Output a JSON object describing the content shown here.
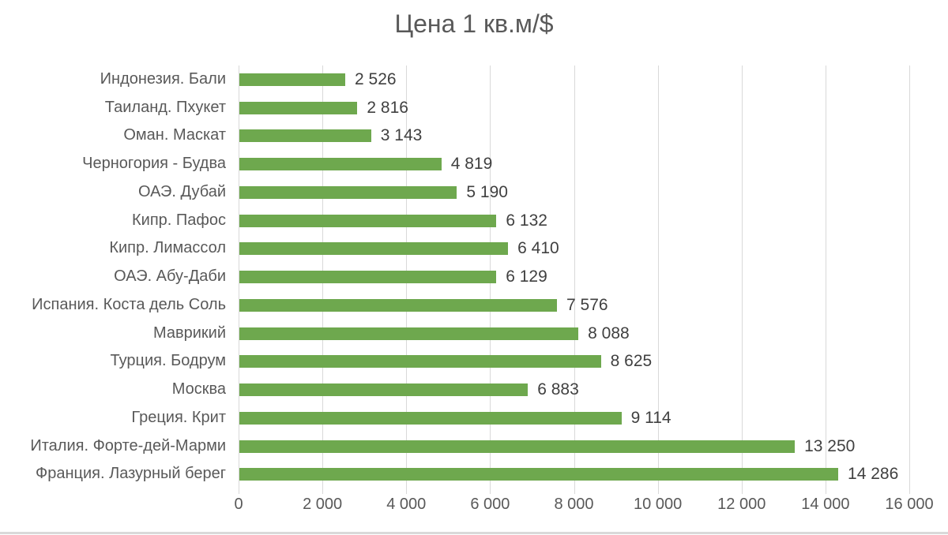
{
  "chart_data": {
    "type": "bar",
    "orientation": "horizontal",
    "title": "Цена 1 кв.м/$",
    "categories": [
      "Индонезия. Бали",
      "Таиланд. Пхукет",
      "Оман. Маскат",
      "Черногория - Будва",
      "ОАЭ. Дубай",
      "Кипр. Пафос",
      "Кипр. Лимассол",
      "ОАЭ. Абу-Даби",
      "Испания. Коста дель Соль",
      "Маврикий",
      "Турция. Бодрум",
      "Москва",
      "Греция. Крит",
      "Италия. Форте-дей-Марми",
      "Франция. Лазурный берег"
    ],
    "values": [
      2526,
      2816,
      3143,
      4819,
      5190,
      6132,
      6410,
      6129,
      7576,
      8088,
      8625,
      6883,
      9114,
      13250,
      14286
    ],
    "value_labels": [
      "2 526",
      "2 816",
      "3 143",
      "4 819",
      "5 190",
      "6 132",
      "6 410",
      "6 129",
      "7 576",
      "8 088",
      "8 625",
      "6 883",
      "9 114",
      "13 250",
      "14 286"
    ],
    "xlabel": "",
    "ylabel": "",
    "xlim": [
      0,
      16000
    ],
    "x_ticks": [
      0,
      2000,
      4000,
      6000,
      8000,
      10000,
      12000,
      14000,
      16000
    ],
    "x_tick_labels": [
      "0",
      "2 000",
      "4 000",
      "6 000",
      "8 000",
      "10 000",
      "12 000",
      "14 000",
      "16 000"
    ],
    "grid": "vertical-major",
    "legend": "none",
    "bar_color": "#6EA84E",
    "colors": {
      "title": "#595959",
      "category_label": "#595959",
      "value_label": "#404040",
      "tick_label": "#595959",
      "gridline": "#D9D9D9",
      "bottom_rule": "#D9D9D9"
    }
  }
}
